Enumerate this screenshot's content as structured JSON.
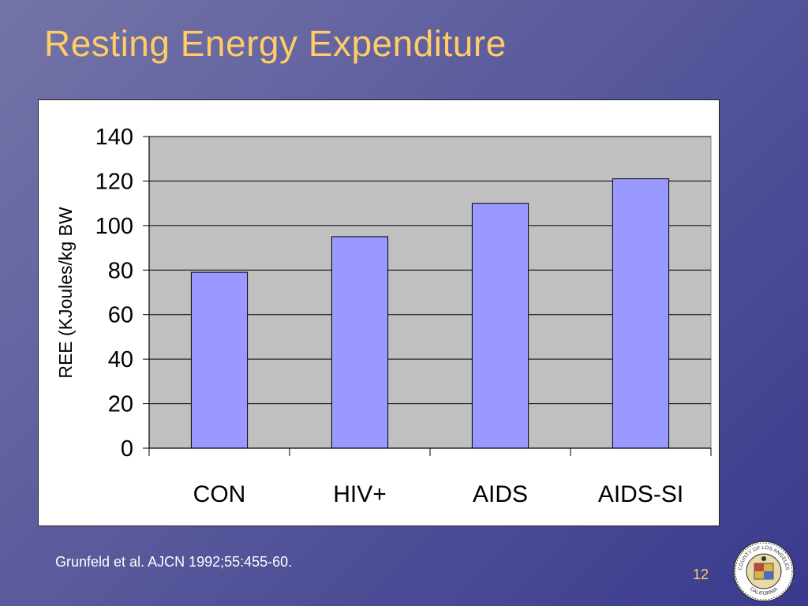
{
  "slide": {
    "title": "Resting Energy Expenditure",
    "citation": "Grunfeld et al. AJCN 1992;55:455-60.",
    "page_number": "12",
    "seal_text_top": "COUNTY OF LOS ANGELES",
    "seal_text_bottom": "CALIFORNIA"
  },
  "colors": {
    "bar_fill": "#9999ff",
    "plot_bg": "#c0c0c0",
    "title": "#ffcc66"
  },
  "chart_data": {
    "type": "bar",
    "categories": [
      "CON",
      "HIV+",
      "AIDS",
      "AIDS-SI"
    ],
    "values": [
      79,
      95,
      110,
      121
    ],
    "ylabel": "REE  (KJoules/kg BW",
    "xlabel": "",
    "ylim": [
      0,
      140
    ],
    "yticks": [
      0,
      20,
      40,
      60,
      80,
      100,
      120,
      140
    ],
    "grid": true,
    "legend": "none"
  }
}
